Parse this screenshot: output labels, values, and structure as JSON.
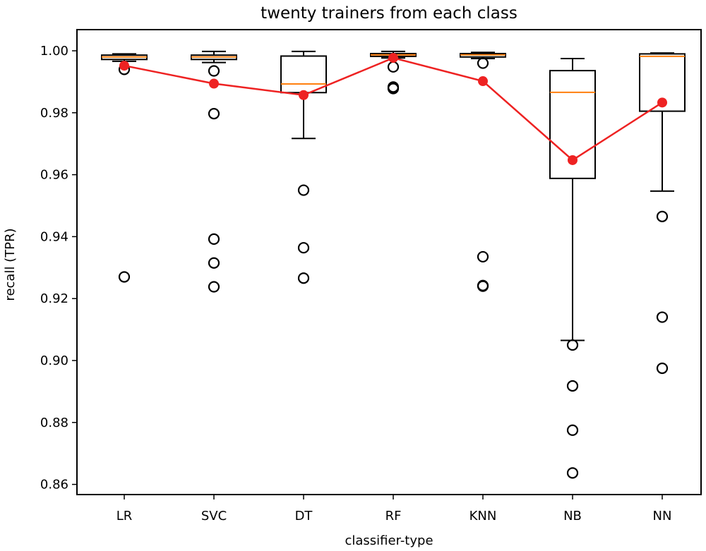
{
  "chart_data": {
    "type": "box",
    "title": "twenty trainers from each class",
    "xlabel": "classifier-type",
    "ylabel": "recall (TPR)",
    "ylim": [
      0.8556,
      1.0068
    ],
    "yticks": [
      0.86,
      0.88,
      0.9,
      0.92,
      0.94,
      0.96,
      0.98,
      1.0
    ],
    "ytick_labels": [
      "0.86",
      "0.88",
      "0.90",
      "0.92",
      "0.94",
      "0.96",
      "0.98",
      "1.00"
    ],
    "categories": [
      "LR",
      "SVC",
      "DT",
      "RF",
      "KNN",
      "NB",
      "NN"
    ],
    "grid": false,
    "colors": {
      "median": "#ff7f0e",
      "mean_line": "#ee2222",
      "box": "#000000",
      "background": "#ffffff"
    },
    "boxes": [
      {
        "label": "LR",
        "whislo": 0.9966,
        "q1": 0.9972,
        "med": 0.998,
        "q3": 0.9986,
        "whishi": 0.999,
        "fliers": [
          0.994,
          0.927
        ]
      },
      {
        "label": "SVC",
        "whislo": 0.9962,
        "q1": 0.9972,
        "med": 0.998,
        "q3": 0.9986,
        "whishi": 0.9998,
        "fliers": [
          0.9935,
          0.9797,
          0.9392,
          0.9315,
          0.9238
        ]
      },
      {
        "label": "DT",
        "whislo": 0.9717,
        "q1": 0.9865,
        "med": 0.9893,
        "q3": 0.9983,
        "whishi": 0.9998,
        "fliers": [
          0.955,
          0.9364,
          0.9266
        ]
      },
      {
        "label": "RF",
        "whislo": 0.9977,
        "q1": 0.9982,
        "med": 0.9987,
        "q3": 0.9991,
        "whishi": 0.9998,
        "fliers": [
          0.9948,
          0.9883,
          0.9878
        ]
      },
      {
        "label": "KNN",
        "whislo": 0.9975,
        "q1": 0.998,
        "med": 0.9987,
        "q3": 0.9991,
        "whishi": 0.9995,
        "fliers": [
          0.996,
          0.9335,
          0.9242,
          0.924
        ]
      },
      {
        "label": "NB",
        "whislo": 0.9065,
        "q1": 0.9588,
        "med": 0.9866,
        "q3": 0.9936,
        "whishi": 0.9975,
        "fliers": [
          0.905,
          0.8918,
          0.8775,
          0.8637
        ]
      },
      {
        "label": "NN",
        "whislo": 0.9547,
        "q1": 0.9805,
        "med": 0.9982,
        "q3": 0.999,
        "whishi": 0.9993,
        "fliers": [
          0.9465,
          0.914,
          0.8975
        ]
      }
    ],
    "series": [
      {
        "name": "mean",
        "type": "line",
        "values": [
          0.9952,
          0.9894,
          0.9857,
          0.9977,
          0.9902,
          0.9647,
          0.9833
        ]
      }
    ]
  }
}
